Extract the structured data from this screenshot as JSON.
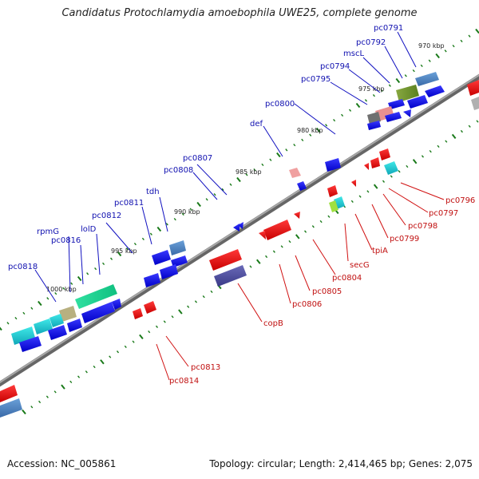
{
  "title": "Candidatus Protochlamydia amoebophila UWE25, complete genome",
  "footer": {
    "accession": "Accession: NC_005861",
    "summary": "Topology: circular; Length: 2,414,465 bp; Genes: 2,075"
  },
  "colors": {
    "backbone": "#8a8a8a",
    "forward_gene": "#1010e6",
    "reverse_gene": "#e61010",
    "forward_label": "#1010b0",
    "reverse_label": "#c01010",
    "tick": "#1a7a1a"
  },
  "kbp_ticks": [
    {
      "label": "970 kbp"
    },
    {
      "label": "975 kbp"
    },
    {
      "label": "980 kbp"
    },
    {
      "label": "985 kbp"
    },
    {
      "label": "990 kbp"
    },
    {
      "label": "995 kbp"
    },
    {
      "label": "1000 kbp"
    }
  ],
  "forward_labels": [
    {
      "text": "pc0791"
    },
    {
      "text": "pc0792"
    },
    {
      "text": "mscL"
    },
    {
      "text": "pc0794"
    },
    {
      "text": "pc0795"
    },
    {
      "text": "pc0800"
    },
    {
      "text": "def"
    },
    {
      "text": "pc0807"
    },
    {
      "text": "pc0808"
    },
    {
      "text": "tdh"
    },
    {
      "text": "pc0811"
    },
    {
      "text": "pc0812"
    },
    {
      "text": "lolD"
    },
    {
      "text": "rpmG"
    },
    {
      "text": "pc0816"
    },
    {
      "text": "pc0818"
    }
  ],
  "reverse_labels": [
    {
      "text": "pc0796"
    },
    {
      "text": "pc0797"
    },
    {
      "text": "pc0798"
    },
    {
      "text": "pc0799"
    },
    {
      "text": "tpiA"
    },
    {
      "text": "secG"
    },
    {
      "text": "pc0804"
    },
    {
      "text": "pc0805"
    },
    {
      "text": "pc0806"
    },
    {
      "text": "copB"
    },
    {
      "text": "pc0813"
    },
    {
      "text": "pc0814"
    }
  ]
}
